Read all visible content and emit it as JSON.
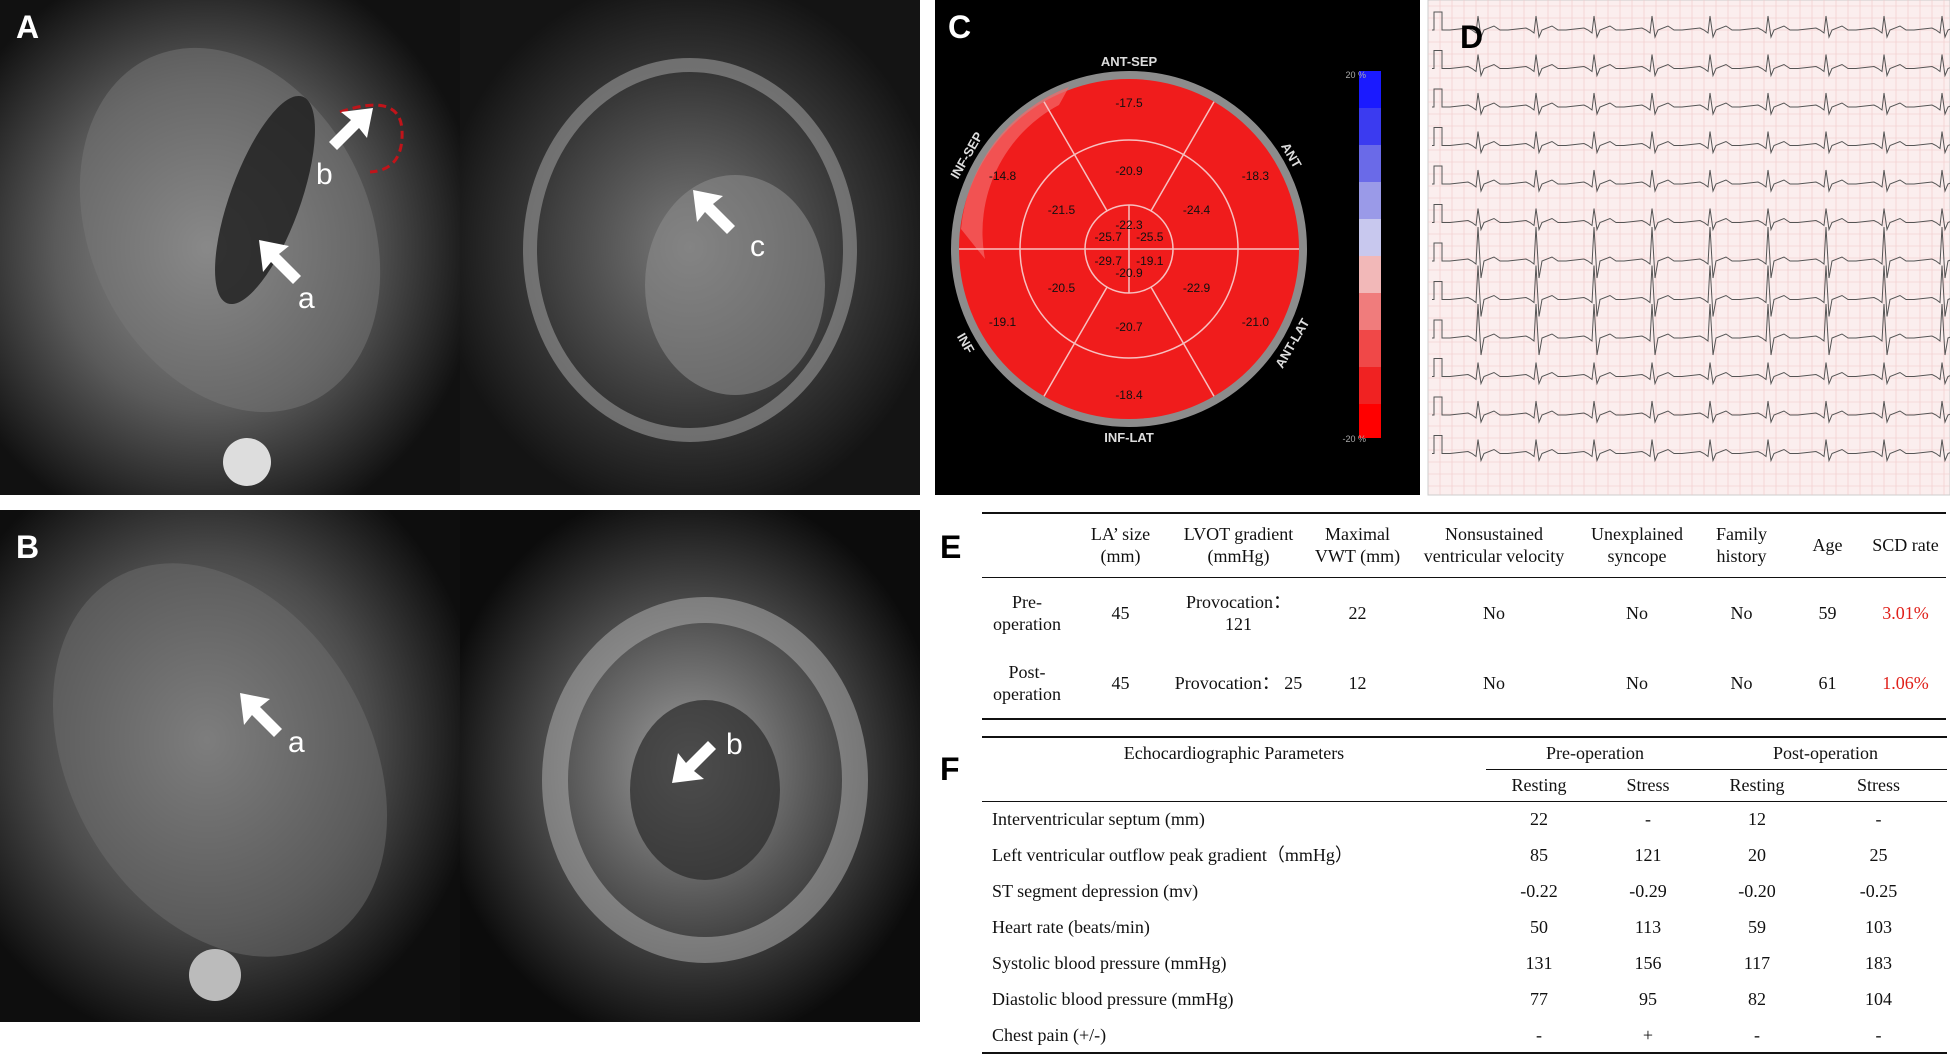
{
  "panel_labels": [
    "A",
    "B",
    "C",
    "D",
    "E",
    "F"
  ],
  "mri_annotations": {
    "A": [
      "b",
      "a",
      "c"
    ],
    "B": [
      "a",
      "b"
    ]
  },
  "bullseye": {
    "segment_labels": [
      "ANT-SEP",
      "ANT",
      "ANT-LAT",
      "INF-LAT",
      "INF",
      "INF-SEP"
    ],
    "outer": [
      "-17.5",
      "-18.3",
      "-21.0",
      "-18.4",
      "-19.1",
      "-14.8"
    ],
    "mid": [
      "-20.9",
      "-24.4",
      "-22.9",
      "-20.7",
      "-20.5",
      "-21.5"
    ],
    "apex": [
      "-22.3",
      "-25.5",
      "-19.1",
      "-20.9",
      "-29.7",
      "-25.7"
    ],
    "colorbar": {
      "max_label": "20 %",
      "min_label": "-20 %"
    }
  },
  "table_e": {
    "header": [
      "",
      "LA’ size (mm)",
      "LVOT gradient (mmHg)",
      "Maximal VWT (mm)",
      "Nonsustained ventricular velocity",
      "Unexplained syncope",
      "Family history",
      "Age",
      "SCD rate"
    ],
    "rows": [
      [
        "Pre-operation",
        "45",
        "Provocation： 121",
        "22",
        "No",
        "No",
        "No",
        "59",
        "3.01%"
      ],
      [
        "Post-operation",
        "45",
        "Provocation： 25",
        "12",
        "No",
        "No",
        "No",
        "61",
        "1.06%"
      ]
    ]
  },
  "table_f": {
    "parameter_header": "Echocardiographic Parameters",
    "groups": [
      "Pre-operation",
      "Post-operation"
    ],
    "subheaders": [
      "Resting",
      "Stress",
      "Resting",
      "Stress"
    ],
    "rows": [
      [
        "Interventricular septum (mm)",
        "22",
        "-",
        "12",
        "-"
      ],
      [
        "Left ventricular outflow peak gradient（mmHg）",
        "85",
        "121",
        "20",
        "25"
      ],
      [
        "ST segment depression (mv)",
        "-0.22",
        "-0.29",
        "-0.20",
        "-0.25"
      ],
      [
        "Heart rate (beats/min)",
        "50",
        "113",
        "59",
        "103"
      ],
      [
        "Systolic blood pressure (mmHg)",
        "131",
        "156",
        "117",
        "183"
      ],
      [
        "Diastolic blood pressure (mmHg)",
        "77",
        "95",
        "82",
        "104"
      ],
      [
        "Chest pain (+/-)",
        "-",
        "+",
        "-",
        "-"
      ]
    ]
  }
}
